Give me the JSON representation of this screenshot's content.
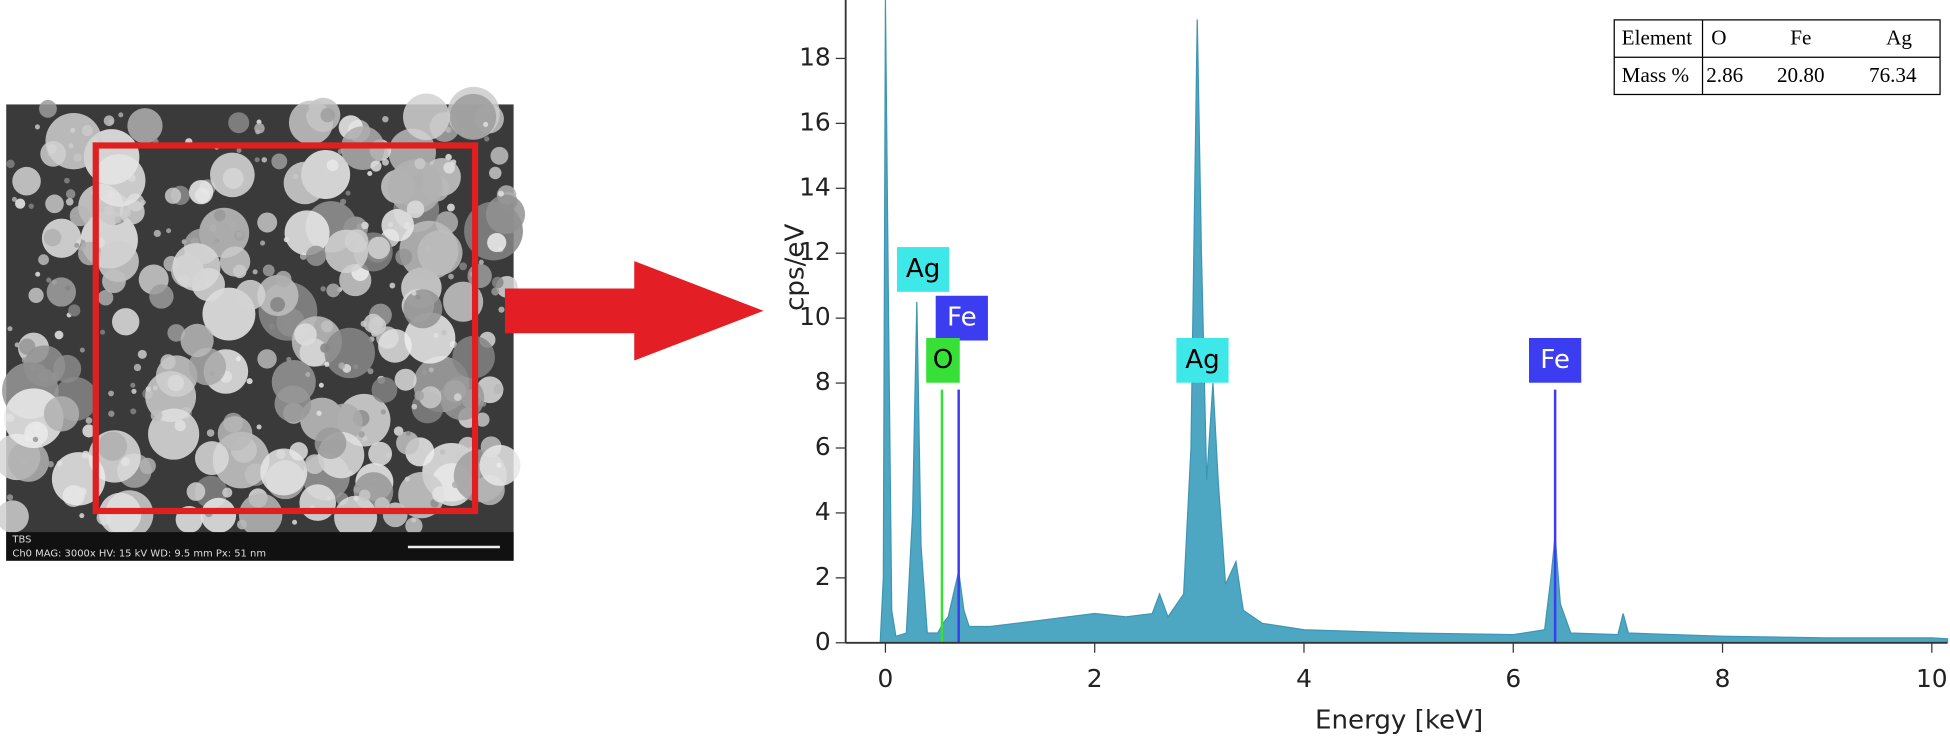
{
  "sem_image": {
    "label": "TBS",
    "caption": "Ch0  MAG: 3000x  HV: 15 kV  WD: 9.5 mm  Px: 51 nm"
  },
  "chart_data": {
    "type": "area",
    "xlabel": "Energy [keV]",
    "ylabel": "cps/eV",
    "color": "#4ea7c2",
    "x": [
      -0.05,
      -0.02,
      0,
      0.03,
      0.06,
      0.1,
      0.2,
      0.26,
      0.3,
      0.34,
      0.4,
      0.5,
      0.55,
      0.6,
      0.65,
      0.7,
      0.75,
      0.8,
      1,
      1.5,
      2,
      2.3,
      2.55,
      2.62,
      2.7,
      2.85,
      2.92,
      2.98,
      3.02,
      3.07,
      3.13,
      3.18,
      3.25,
      3.35,
      3.42,
      3.6,
      3.8,
      4,
      5,
      6,
      6.3,
      6.36,
      6.4,
      6.45,
      6.55,
      7,
      7.05,
      7.1,
      8,
      9,
      10,
      10.15
    ],
    "values": [
      0,
      2,
      19.8,
      10,
      1,
      0.2,
      0.3,
      4,
      10.5,
      3,
      0.3,
      0.3,
      0.6,
      0.8,
      1.5,
      2.2,
      1,
      0.5,
      0.5,
      0.7,
      0.9,
      0.8,
      0.9,
      1.5,
      0.8,
      1.5,
      6,
      19.2,
      12,
      5,
      8,
      5,
      1.8,
      2.5,
      1,
      0.6,
      0.5,
      0.4,
      0.3,
      0.25,
      0.4,
      2,
      3.3,
      1.2,
      0.3,
      0.25,
      0.9,
      0.3,
      0.2,
      0.15,
      0.15,
      0.12
    ],
    "xlim": [
      -0.38,
      10.15
    ],
    "ylim": [
      0,
      19.8
    ],
    "xticks": [
      0,
      2,
      4,
      6,
      8,
      10
    ],
    "yticks": [
      0,
      2,
      4,
      6,
      8,
      10,
      12,
      14,
      16,
      18
    ],
    "markers": [
      {
        "label": "Ag",
        "x": 0.36,
        "y": 11.5,
        "color": "#3ee8e8"
      },
      {
        "label": "Fe",
        "x": 0.73,
        "y": 10,
        "color": "#3c3cf0",
        "line_x": 0.7,
        "line": 7.8
      },
      {
        "label": "O",
        "x": 0.55,
        "y": 8.7,
        "color": "#36e036",
        "line_x": 0.54,
        "line": 7.8
      },
      {
        "label": "Ag",
        "x": 3.03,
        "y": 8.7,
        "color": "#3ee8e8"
      },
      {
        "label": "Fe",
        "x": 6.4,
        "y": 8.7,
        "color": "#3c3cf0",
        "line_x": 6.4,
        "line": 7.8
      }
    ],
    "table": {
      "header": [
        "Element",
        "O",
        "Fe",
        "Ag"
      ],
      "row": [
        "Mass %",
        "2.86",
        "20.80",
        "76.34"
      ]
    }
  }
}
